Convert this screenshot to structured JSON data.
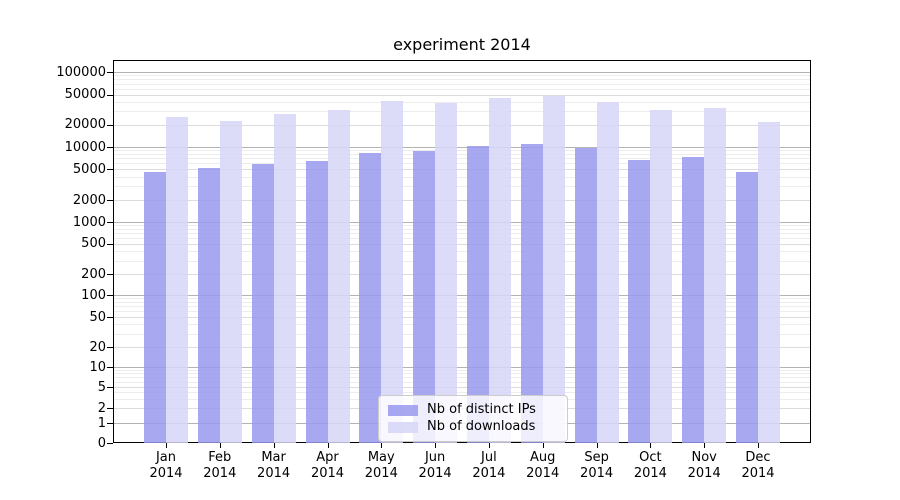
{
  "figure": {
    "title": "experiment 2014"
  },
  "chart_data": {
    "type": "bar",
    "title": "experiment 2014",
    "categories": [
      "Jan",
      "Feb",
      "Mar",
      "Apr",
      "May",
      "Jun",
      "Jul",
      "Aug",
      "Sep",
      "Oct",
      "Nov",
      "Dec"
    ],
    "x_tick_year": "2014",
    "series": [
      {
        "name": "Nb of distinct IPs",
        "color": "rgba(153,153,238,0.85)",
        "values": [
          4600,
          5200,
          5900,
          6500,
          8400,
          8700,
          10300,
          11000,
          9600,
          6600,
          7400,
          4600
        ]
      },
      {
        "name": "Nb of downloads",
        "color": "rgba(214,214,248,0.85)",
        "values": [
          25000,
          22000,
          28000,
          31000,
          41000,
          39000,
          45500,
          47500,
          40000,
          31500,
          33500,
          21500
        ]
      }
    ],
    "yscale": "symlog",
    "y_ticks": [
      0,
      1,
      2,
      5,
      10,
      20,
      50,
      100,
      200,
      500,
      1000,
      2000,
      5000,
      10000,
      20000,
      50000,
      100000
    ],
    "ylim": [
      0,
      150000
    ],
    "xlabel": "",
    "ylabel": "",
    "grid": true,
    "legend_position": "lower center"
  }
}
